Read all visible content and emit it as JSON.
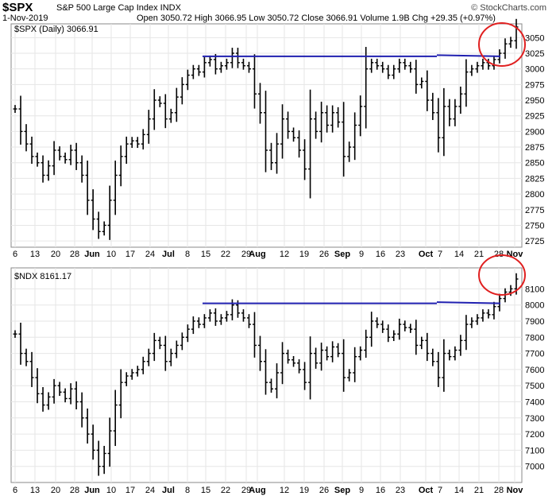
{
  "header": {
    "symbol": "$SPX",
    "name": "S&P 500 Large Cap Index INDX",
    "date": "1-Nov-2019",
    "quote": "Open 3050.72  High 3066.95  Low 3050.72  Close 3066.91  Volume 1.9B  Chg +29.35 (+0.97%)",
    "brand": "© StockCharts.com"
  },
  "x_labels": [
    "6",
    "13",
    "20",
    "28",
    "Jun",
    "10",
    "17",
    "24",
    "Jul",
    "8",
    "15",
    "22",
    "29",
    "Aug",
    "12",
    "19",
    "26",
    "Sep",
    "9",
    "16",
    "23",
    "Oct",
    "7",
    "14",
    "21",
    "28",
    "Nov"
  ],
  "x_major": [
    "Jun",
    "Jul",
    "Aug",
    "Sep",
    "Oct",
    "Nov"
  ],
  "chart_data": [
    {
      "type": "ohlc",
      "label": "$SPX (Daily) 3066.91",
      "ylim": [
        2715,
        3072
      ],
      "yticks": [
        2725,
        2750,
        2775,
        2800,
        2825,
        2850,
        2875,
        2900,
        2925,
        2950,
        2975,
        3000,
        3025,
        3050
      ],
      "resistance": 3020,
      "closes": [
        2936,
        2900,
        2880,
        2860,
        2850,
        2830,
        2845,
        2870,
        2860,
        2855,
        2870,
        2850,
        2830,
        2790,
        2760,
        2740,
        2750,
        2790,
        2830,
        2860,
        2880,
        2885,
        2880,
        2895,
        2920,
        2950,
        2945,
        2920,
        2930,
        2955,
        2975,
        2990,
        3000,
        2995,
        3010,
        3015,
        3000,
        3005,
        3010,
        3025,
        3010,
        3005,
        3000,
        2960,
        2930,
        2870,
        2850,
        2880,
        2920,
        2900,
        2890,
        2870,
        2840,
        2920,
        2900,
        2930,
        2910,
        2930,
        2915,
        2860,
        2875,
        2910,
        2940,
        3000,
        3010,
        3005,
        3000,
        2990,
        3000,
        3010,
        3005,
        3000,
        2975,
        2980,
        2950,
        2930,
        2890,
        2940,
        2920,
        2940,
        2960,
        2995,
        3000,
        3005,
        3010,
        3005,
        3015,
        3025,
        3040,
        3045,
        3067
      ]
    },
    {
      "type": "ohlc",
      "label": "$NDX 8161.17",
      "ylim": [
        6900,
        8230
      ],
      "yticks": [
        7000,
        7100,
        7200,
        7300,
        7400,
        7500,
        7600,
        7700,
        7800,
        7900,
        8000,
        8100
      ],
      "resistance": 8010,
      "closes": [
        7820,
        7700,
        7650,
        7550,
        7450,
        7380,
        7430,
        7500,
        7460,
        7420,
        7480,
        7400,
        7300,
        7200,
        7100,
        7000,
        7080,
        7220,
        7380,
        7520,
        7560,
        7580,
        7600,
        7650,
        7700,
        7780,
        7750,
        7650,
        7700,
        7750,
        7800,
        7850,
        7900,
        7880,
        7920,
        7950,
        7900,
        7920,
        7940,
        8000,
        7950,
        7920,
        7880,
        7750,
        7650,
        7520,
        7480,
        7580,
        7700,
        7660,
        7640,
        7600,
        7520,
        7700,
        7640,
        7720,
        7680,
        7740,
        7700,
        7550,
        7580,
        7680,
        7720,
        7800,
        7900,
        7880,
        7850,
        7800,
        7820,
        7880,
        7860,
        7850,
        7750,
        7780,
        7700,
        7650,
        7550,
        7700,
        7680,
        7720,
        7780,
        7880,
        7900,
        7920,
        7950,
        7940,
        7990,
        8040,
        8080,
        8100,
        8161
      ]
    }
  ]
}
